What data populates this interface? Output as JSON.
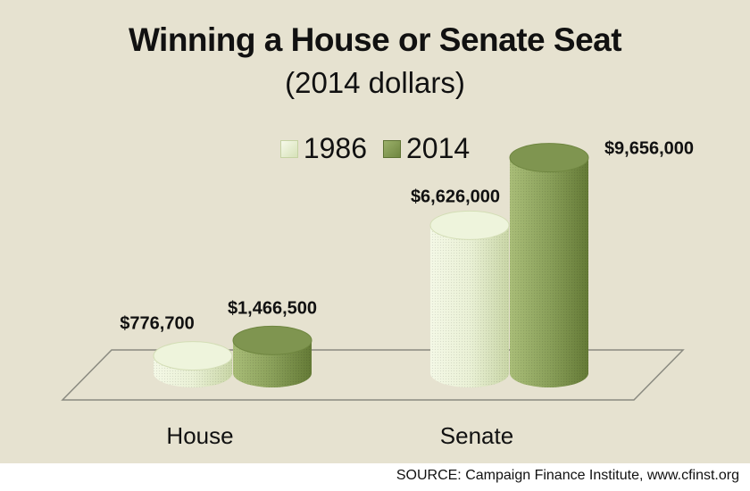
{
  "chart_data": {
    "type": "bar",
    "title": "Winning a House or Senate Seat",
    "subtitle": "(2014 dollars)",
    "categories": [
      "House",
      "Senate"
    ],
    "series": [
      {
        "name": "1986",
        "values": [
          776700,
          6626000
        ],
        "labels": [
          "$776,700",
          "$6,626,000"
        ],
        "color": "#e3ebcc"
      },
      {
        "name": "2014",
        "values": [
          1466500,
          9656000
        ],
        "labels": [
          "$1,466,500",
          "$9,656,000"
        ],
        "color": "#8aa05a"
      }
    ],
    "legend_position": "top-center",
    "grid": false
  },
  "source": "SOURCE: Campaign Finance Institute, www.cfinst.org"
}
